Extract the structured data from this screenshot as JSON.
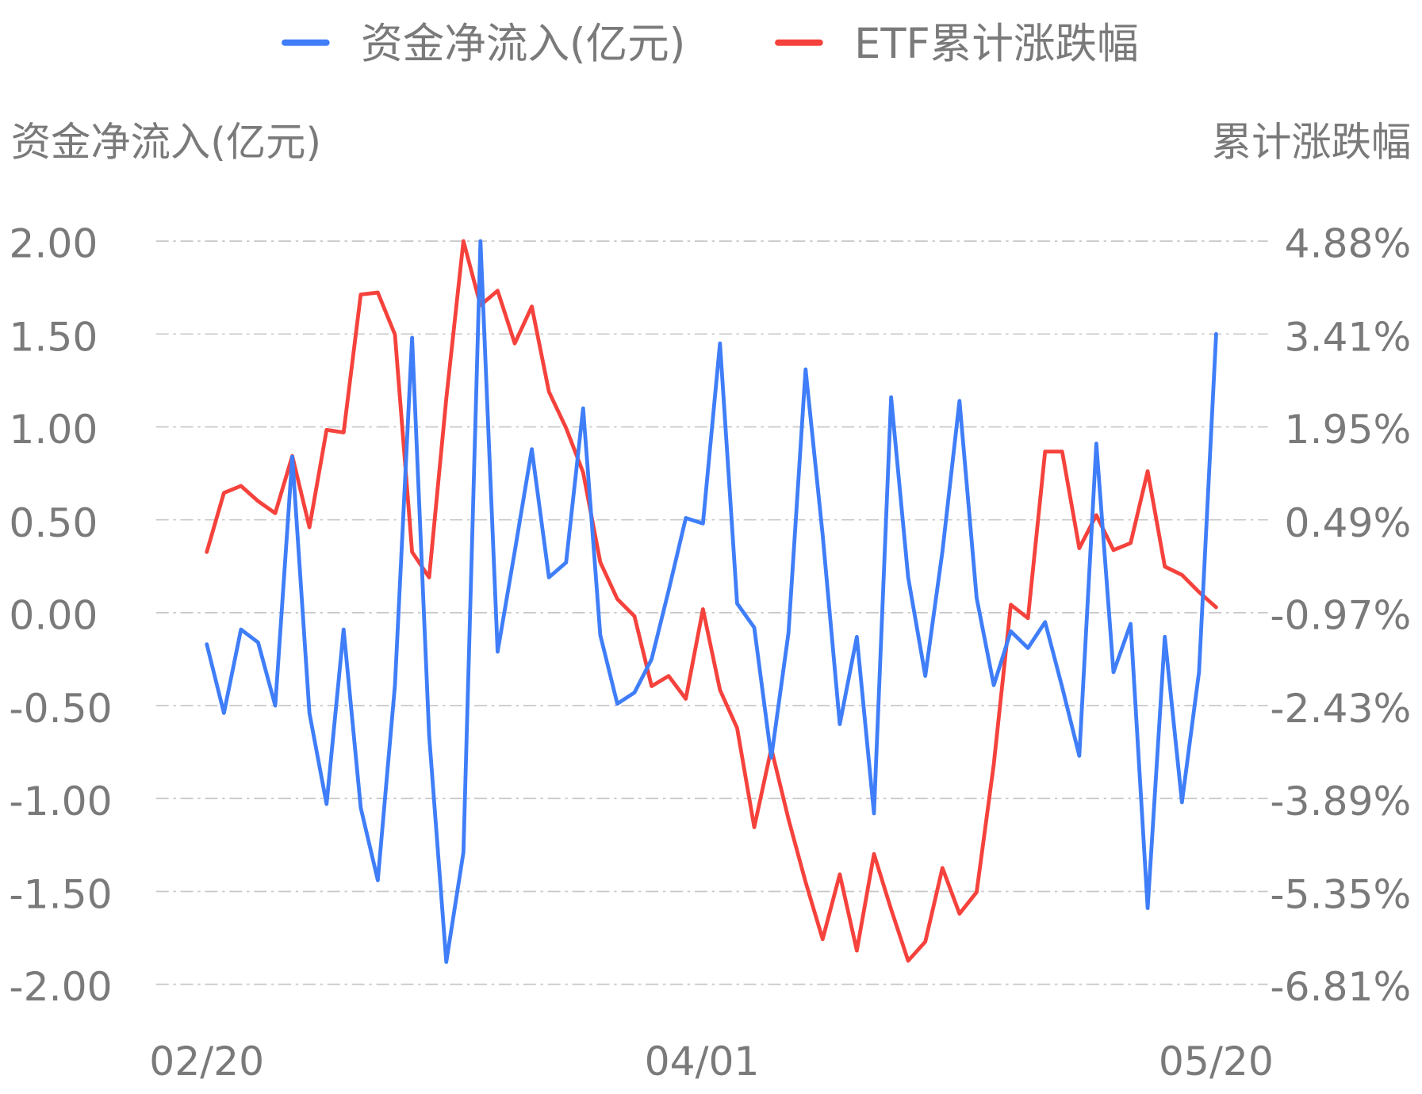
{
  "legend": {
    "items": [
      {
        "label": "资金净流入(亿元)",
        "color": "#3f7ef8"
      },
      {
        "label": "ETF累计涨跌幅",
        "color": "#f5423c"
      }
    ]
  },
  "axes": {
    "left_title": "资金净流入(亿元)",
    "right_title": "累计涨跌幅",
    "left_ticks": [
      "2.00",
      "1.50",
      "1.00",
      "0.50",
      "0.00",
      "-0.50",
      "-1.00",
      "-1.50",
      "-2.00"
    ],
    "right_ticks": [
      "4.88%",
      "3.41%",
      "1.95%",
      "0.49%",
      "-0.97%",
      "-2.43%",
      "-3.89%",
      "-5.35%",
      "-6.81%"
    ],
    "x_labels": [
      "02/20",
      "04/01",
      "05/20"
    ]
  },
  "chart_data": {
    "type": "line",
    "title": "",
    "xlabel": "",
    "ylabel": "资金净流入(亿元)",
    "y2label": "累计涨跌幅",
    "ylim": [
      -2.0,
      2.0
    ],
    "y2lim": [
      -6.81,
      4.88
    ],
    "grid": true,
    "legend_position": "top",
    "x_tick_labels": [
      "02/20",
      "04/01",
      "05/20"
    ],
    "x_tick_indices": [
      0,
      29,
      59
    ],
    "point_count": 60,
    "series": [
      {
        "name": "资金净流入(亿元)",
        "axis": "left",
        "color": "#3f7ef8",
        "values": [
          -0.17,
          -0.54,
          -0.09,
          -0.16,
          -0.5,
          0.84,
          -0.54,
          -1.03,
          -0.09,
          -1.05,
          -1.44,
          -0.39,
          1.48,
          -0.66,
          -1.88,
          -1.29,
          2.0,
          -0.21,
          0.33,
          0.88,
          0.19,
          0.27,
          1.1,
          -0.12,
          -0.49,
          -0.43,
          -0.25,
          0.12,
          0.51,
          0.48,
          1.45,
          0.05,
          -0.08,
          -0.78,
          -0.11,
          1.31,
          0.42,
          -0.6,
          -0.13,
          -1.08,
          1.16,
          0.19,
          -0.34,
          0.33,
          1.14,
          0.08,
          -0.39,
          -0.1,
          -0.19,
          -0.05,
          -0.4,
          -0.77,
          0.91,
          -0.32,
          -0.06,
          -1.59,
          -0.13,
          -1.02,
          -0.32,
          1.5
        ]
      },
      {
        "name": "ETF累计涨跌幅",
        "axis": "right",
        "unit": "%",
        "color": "#f5423c",
        "values": [
          -0.01,
          0.92,
          1.03,
          0.79,
          0.6,
          1.5,
          0.38,
          1.91,
          1.87,
          4.04,
          4.07,
          3.41,
          -0.01,
          -0.41,
          2.4,
          4.88,
          3.87,
          4.1,
          3.27,
          3.85,
          2.51,
          1.94,
          1.24,
          -0.17,
          -0.75,
          -1.02,
          -2.12,
          -1.96,
          -2.32,
          -0.91,
          -2.18,
          -2.78,
          -4.34,
          -3.1,
          -4.21,
          -5.2,
          -6.1,
          -5.08,
          -6.28,
          -4.76,
          -5.63,
          -6.44,
          -6.14,
          -4.98,
          -5.7,
          -5.36,
          -3.35,
          -0.84,
          -1.05,
          1.57,
          1.57,
          0.05,
          0.57,
          0.02,
          0.13,
          1.26,
          -0.24,
          -0.37,
          -0.64,
          -0.88
        ]
      }
    ]
  }
}
